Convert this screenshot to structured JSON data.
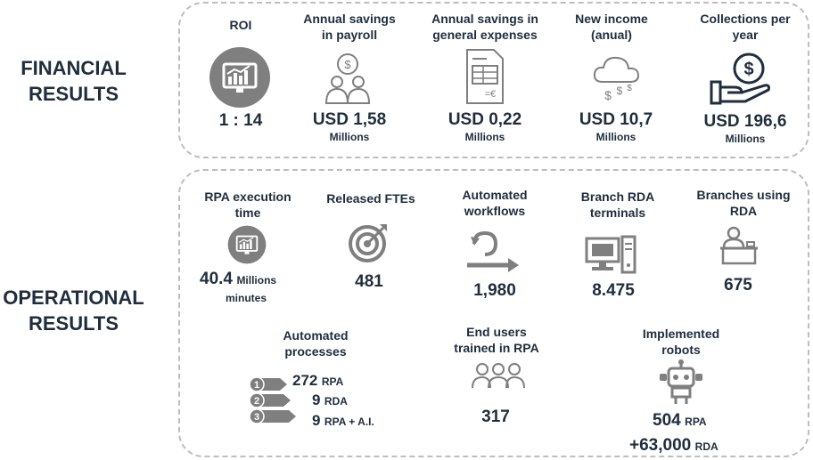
{
  "sections": {
    "financial": {
      "title_line1": "FINANCIAL",
      "title_line2": "RESULTS"
    },
    "operational": {
      "title_line1": "OPERATIONAL",
      "title_line2": "RESULTS"
    }
  },
  "financial": {
    "roi": {
      "label": "ROI",
      "value": "1 : 14",
      "icon": "chart-screen-icon"
    },
    "payroll": {
      "label_line1": "Annual savings",
      "label_line2": "in payroll",
      "value": "USD 1,58",
      "unit": "Millions",
      "icon": "people-money-icon"
    },
    "general": {
      "label_line1": "Annual savings in",
      "label_line2": "general expenses",
      "value": "USD 0,22",
      "unit": "Millions",
      "icon": "invoice-icon"
    },
    "income": {
      "label_line1": "New income",
      "label_line2": "(anual)",
      "value": "USD 10,7",
      "unit": "Millions",
      "icon": "money-cloud-icon"
    },
    "collections": {
      "label_line1": "Collections per",
      "label_line2": "year",
      "value": "USD 196,6",
      "unit": "Millions",
      "icon": "hand-coin-icon"
    }
  },
  "operational": {
    "rpa_time": {
      "label_line1": "RPA execution",
      "label_line2": "time",
      "value": "40.4",
      "unit_inline": "Millions",
      "unit_line2": "minutes",
      "icon": "chart-screen-icon"
    },
    "ftes": {
      "label": "Released FTEs",
      "value": "481",
      "icon": "target-icon"
    },
    "workflows": {
      "label_line1": "Automated",
      "label_line2": "workflows",
      "value": "1,980",
      "icon": "workflow-arrow-icon"
    },
    "terminals": {
      "label_line1": "Branch RDA",
      "label_line2": "terminals",
      "value": "8.475",
      "icon": "computer-terminal-icon"
    },
    "branches": {
      "label_line1": "Branches using",
      "label_line2": "RDA",
      "value": "675",
      "icon": "branch-desk-icon"
    },
    "processes": {
      "label_line1": "Automated",
      "label_line2": "processes",
      "icon": "numbered-arrows-icon",
      "items": [
        {
          "badge": "1",
          "value": "272",
          "unit": "RPA"
        },
        {
          "badge": "2",
          "value": "9",
          "unit": "RDA"
        },
        {
          "badge": "3",
          "value": "9",
          "unit": "RPA + A.I."
        }
      ]
    },
    "trained": {
      "label_line1": "End users",
      "label_line2": "trained in RPA",
      "value": "317",
      "icon": "group-users-icon"
    },
    "robots": {
      "label_line1": "Implemented",
      "label_line2": "robots",
      "value1": "504",
      "unit1": "RPA",
      "value2": "+63,000",
      "unit2": "RDA",
      "icon": "robot-icon"
    }
  },
  "colors": {
    "text": "#1f2d3d",
    "icon": "#7f7f7f",
    "border": "#bdbdbd"
  }
}
